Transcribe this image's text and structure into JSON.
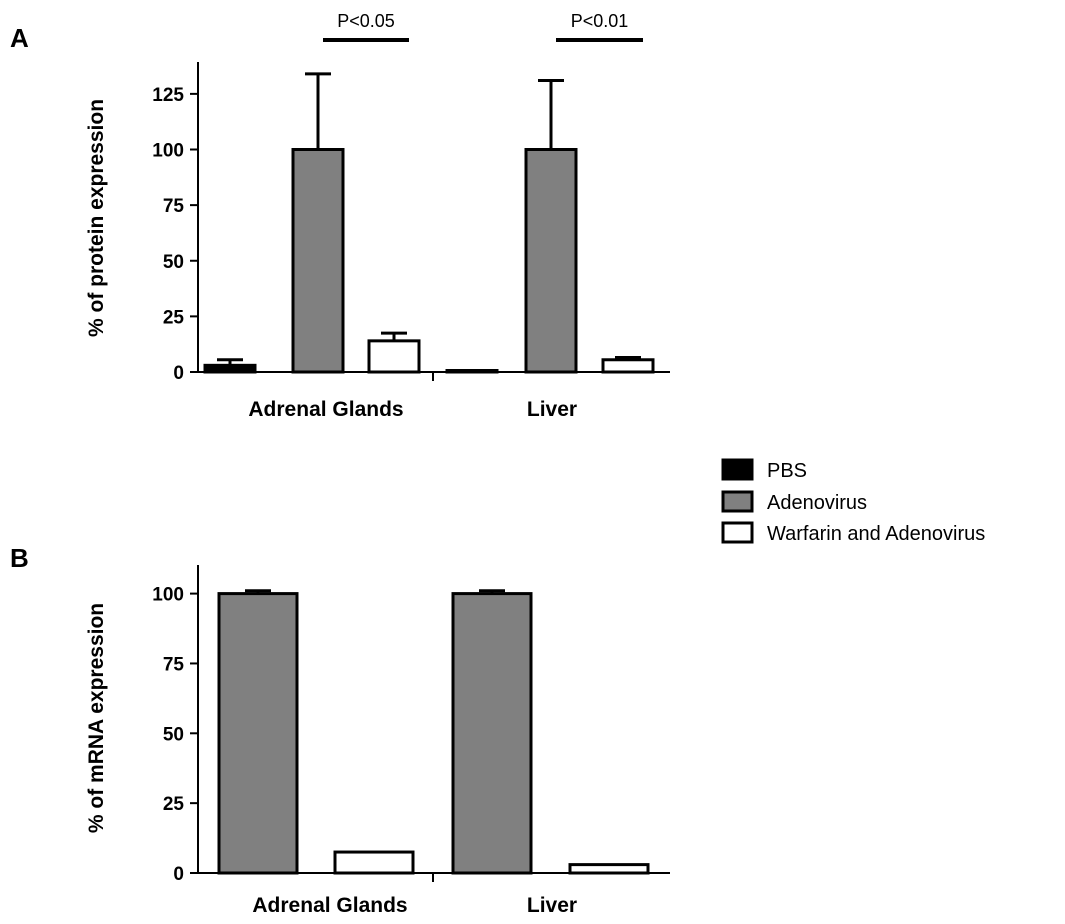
{
  "legend": {
    "items": [
      {
        "label": "PBS",
        "color": "#000000"
      },
      {
        "label": "Adenovirus",
        "color": "#808080"
      },
      {
        "label": "Warfarin and Adenovirus",
        "color": "#ffffff"
      }
    ]
  },
  "chart_data": [
    {
      "panel": "A",
      "type": "bar",
      "ylabel": "% of protein expression",
      "xlabel": "",
      "ylim": [
        0,
        140
      ],
      "yticks": [
        0,
        25,
        50,
        75,
        100,
        125
      ],
      "categories": [
        "Adrenal Glands",
        "Liver"
      ],
      "series": [
        {
          "name": "PBS",
          "color": "#000000",
          "values": [
            3,
            0.5
          ],
          "errors": [
            2.5,
            0
          ]
        },
        {
          "name": "Adenovirus",
          "color": "#808080",
          "values": [
            100,
            100
          ],
          "errors": [
            34,
            31
          ]
        },
        {
          "name": "Warfarin and Adenovirus",
          "color": "#ffffff",
          "values": [
            14,
            5.5
          ],
          "errors": [
            3.5,
            1
          ]
        }
      ],
      "significance": [
        {
          "label": "P<0.05",
          "category": "Adrenal Glands",
          "between": [
            "Adenovirus",
            "Warfarin and Adenovirus"
          ]
        },
        {
          "label": "P<0.01",
          "category": "Liver",
          "between": [
            "Adenovirus",
            "Warfarin and Adenovirus"
          ]
        }
      ],
      "legend_position": "right",
      "grid": false
    },
    {
      "panel": "B",
      "type": "bar",
      "ylabel": "% of mRNA expression",
      "xlabel": "",
      "ylim": [
        0,
        110
      ],
      "yticks": [
        0,
        25,
        50,
        75,
        100
      ],
      "categories": [
        "Adrenal Glands",
        "Liver"
      ],
      "series": [
        {
          "name": "Adenovirus",
          "color": "#808080",
          "values": [
            100,
            100
          ],
          "errors": [
            1,
            1
          ]
        },
        {
          "name": "Warfarin and Adenovirus",
          "color": "#ffffff",
          "values": [
            7.5,
            3
          ],
          "errors": [
            0,
            0
          ]
        }
      ],
      "legend_position": "right",
      "grid": false
    }
  ]
}
